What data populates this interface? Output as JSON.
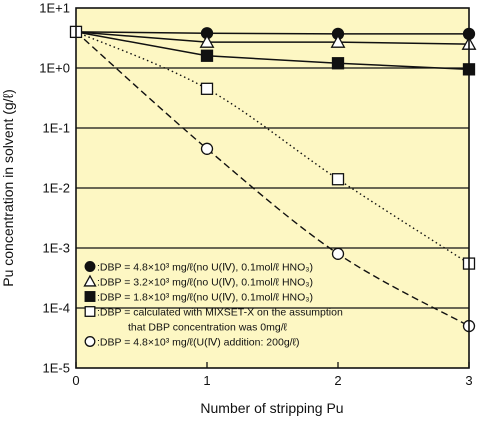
{
  "chart_data": {
    "type": "line",
    "xlabel": "Number of stripping Pu",
    "ylabel": "Pu concentration in solvent (g/ℓ)",
    "x_ticks": [
      "0",
      "1",
      "2",
      "3"
    ],
    "y_ticks": [
      "1E-5",
      "1E-4",
      "1E-3",
      "1E-2",
      "1E-1",
      "1E+0",
      "1E+1"
    ],
    "xlim": [
      0,
      3
    ],
    "ylim": [
      1e-05,
      10
    ],
    "y_scale": "log",
    "grid": "horizontal",
    "background_color": "#fdf7c3",
    "legend_position": "bottom-left",
    "series": [
      {
        "marker": "filled-circle",
        "line": "solid",
        "legend_label": ":DBP = 4.8×10³ mg/ℓ(no U(Ⅳ), 0.1mol/ℓ HNO₃)",
        "x": [
          0,
          1,
          2,
          3
        ],
        "y": [
          4.0,
          3.8,
          3.7,
          3.7
        ]
      },
      {
        "marker": "open-triangle",
        "line": "solid",
        "legend_label": ":DBP = 3.2×10³ mg/ℓ(no U(Ⅳ), 0.1mol/ℓ HNO₃)",
        "x": [
          0,
          1,
          2,
          3
        ],
        "y": [
          4.0,
          2.7,
          2.7,
          2.5
        ]
      },
      {
        "marker": "filled-square",
        "line": "solid",
        "legend_label": ":DBP = 1.8×10³ mg/ℓ(no U(Ⅳ), 0.1mol/ℓ HNO₃)",
        "x": [
          0,
          1,
          2,
          3
        ],
        "y": [
          4.0,
          1.6,
          1.2,
          0.95
        ]
      },
      {
        "marker": "open-square",
        "line": "dotted",
        "legend_label": ":DBP = calculated with MIXSET-X on the assumption",
        "legend_label_2": "that DBP concentration was 0mg/ℓ",
        "x": [
          0,
          1,
          2,
          3
        ],
        "y": [
          4.0,
          0.45,
          0.014,
          0.00055
        ]
      },
      {
        "marker": "open-circle",
        "line": "dashed",
        "legend_label": ":DBP = 4.8×10³ mg/ℓ(U(Ⅳ) addition: 200g/ℓ)",
        "x": [
          0,
          1,
          2,
          3
        ],
        "y": [
          4.0,
          0.045,
          0.0008,
          5e-05
        ]
      }
    ]
  }
}
